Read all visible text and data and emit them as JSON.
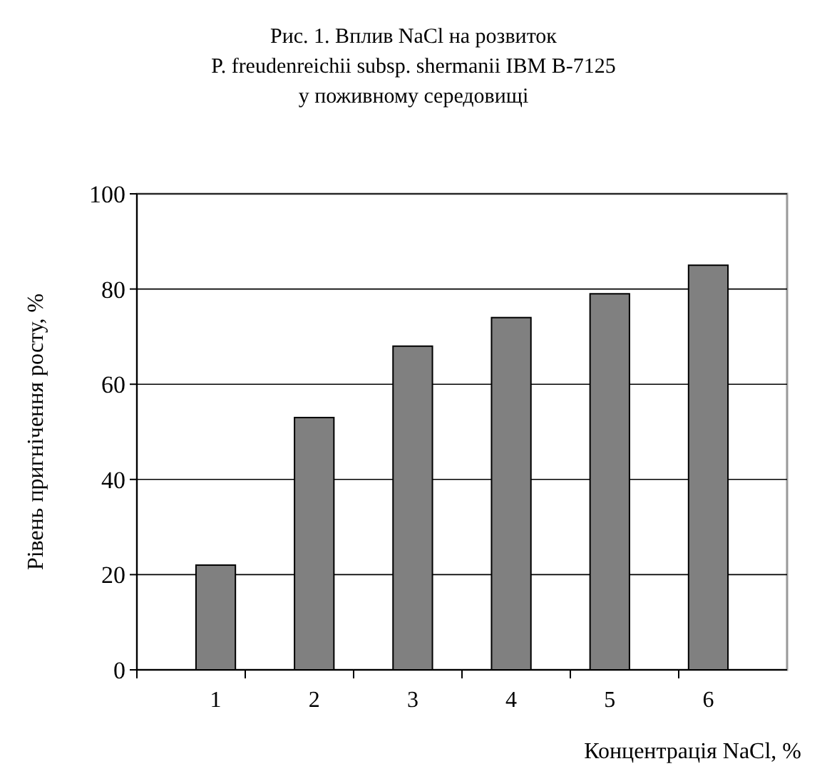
{
  "chart_data": {
    "type": "bar",
    "title": "Рис. 1. Вплив NaCl на розвиток\nP. freudenreichii subsp. shermanii IBM B-7125\nу поживному середовищі",
    "xlabel": "Концентрація NaCl, %",
    "ylabel": "Рівень пригнічення росту,  %",
    "categories": [
      "1",
      "2",
      "3",
      "4",
      "5",
      "6"
    ],
    "values": [
      22,
      53,
      68,
      74,
      79,
      85
    ],
    "color": "#808080",
    "ylim": [
      0,
      100
    ],
    "yticks": [
      0,
      20,
      40,
      60,
      80,
      100
    ],
    "grid": "y"
  }
}
